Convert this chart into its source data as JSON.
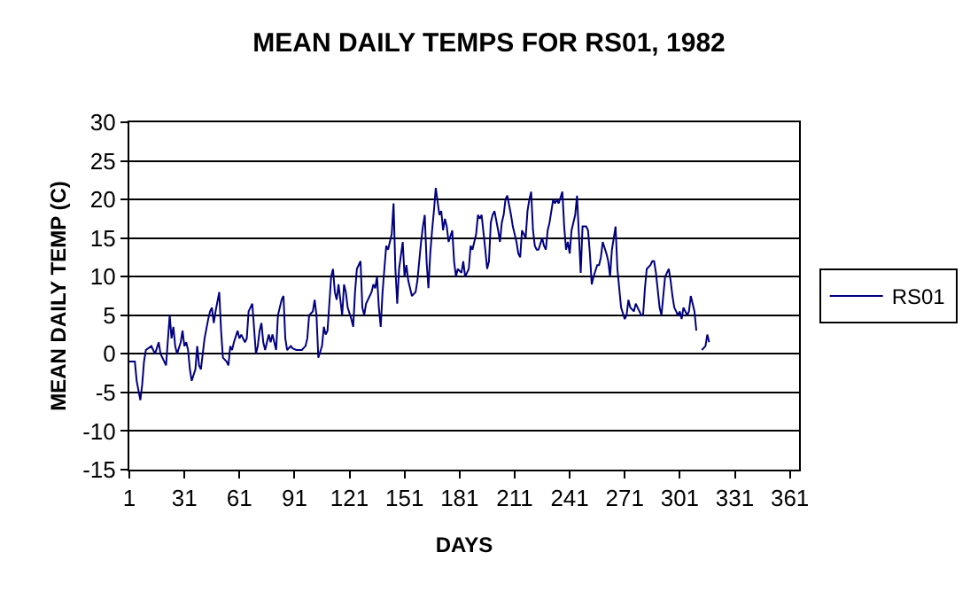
{
  "chart_data": {
    "type": "line",
    "title": "MEAN DAILY TEMPS FOR RS01, 1982",
    "xlabel": "DAYS",
    "ylabel": "MEAN DAILY TEMP (C)",
    "x": [
      1,
      4,
      5,
      7,
      8,
      9,
      10,
      13,
      15,
      17,
      18,
      19,
      21,
      23,
      24,
      25,
      26,
      27,
      29,
      30,
      31,
      32,
      33,
      34,
      35,
      37,
      38,
      39,
      40,
      41,
      42,
      44,
      45,
      46,
      47,
      48,
      50,
      51,
      52,
      54,
      55,
      56,
      57,
      58,
      60,
      61,
      62,
      64,
      65,
      66,
      67,
      68,
      70,
      71,
      72,
      73,
      74,
      75,
      77,
      78,
      79,
      80,
      81,
      82,
      84,
      85,
      86,
      87,
      89,
      90,
      92,
      95,
      97,
      98,
      99,
      101,
      102,
      103,
      104,
      106,
      107,
      108,
      109,
      110,
      111,
      112,
      113,
      114,
      115,
      117,
      118,
      119,
      120,
      122,
      123,
      124,
      125,
      127,
      128,
      129,
      130,
      132,
      133,
      134,
      135,
      136,
      137,
      138,
      139,
      140,
      141,
      142,
      144,
      145,
      146,
      147,
      148,
      150,
      151,
      152,
      153,
      154,
      155,
      157,
      158,
      160,
      161,
      162,
      163,
      164,
      165,
      166,
      167,
      168,
      170,
      171,
      172,
      173,
      174,
      175,
      177,
      178,
      179,
      180,
      182,
      183,
      184,
      185,
      186,
      187,
      188,
      190,
      191,
      192,
      193,
      195,
      196,
      197,
      198,
      199,
      200,
      202,
      203,
      204,
      205,
      206,
      207,
      209,
      210,
      211,
      212,
      213,
      214,
      215,
      217,
      218,
      219,
      220,
      221,
      222,
      223,
      224,
      226,
      227,
      228,
      229,
      230,
      232,
      233,
      234,
      235,
      237,
      238,
      239,
      240,
      241,
      242,
      244,
      245,
      247,
      248,
      250,
      251,
      252,
      253,
      254,
      256,
      257,
      258,
      259,
      261,
      262,
      263,
      264,
      266,
      267,
      268,
      269,
      271,
      272,
      273,
      274,
      276,
      277,
      278,
      280,
      281,
      282,
      283,
      285,
      286,
      287,
      288,
      290,
      291,
      292,
      293,
      295,
      296,
      297,
      298,
      300,
      301,
      302,
      303,
      305,
      306,
      307,
      309,
      310,
      311,
      313,
      315,
      316,
      317
    ],
    "series": [
      {
        "name": "RS01",
        "color": "#000080",
        "values": [
          -1,
          -1,
          -3.5,
          -6,
          -4,
          -1,
          0.5,
          1,
          0,
          1.5,
          0,
          -0.5,
          -1.5,
          5,
          2,
          3.5,
          1,
          0,
          1.5,
          3,
          1,
          1.5,
          0.5,
          -2,
          -3.5,
          -2,
          1,
          -1.5,
          -2,
          0,
          2,
          4.5,
          5.5,
          6,
          4,
          5.5,
          8,
          3,
          -0.5,
          -1,
          -1.5,
          1,
          0.5,
          1.5,
          3,
          2,
          2.5,
          1.5,
          2,
          5.5,
          6,
          6.5,
          0,
          1,
          3,
          4,
          1.5,
          0.5,
          2.5,
          1.5,
          2.5,
          1.5,
          0.5,
          5,
          7,
          7.5,
          2,
          0.5,
          1,
          0.7,
          0.5,
          0.5,
          1,
          2,
          5,
          5.5,
          7,
          5,
          -0.5,
          1,
          3.5,
          2.5,
          3,
          6.5,
          10,
          11,
          8,
          7,
          9,
          5,
          9,
          8,
          6,
          4.5,
          3.5,
          8,
          11,
          12,
          6,
          5,
          6.5,
          7.5,
          8,
          9,
          8.5,
          10,
          6,
          3.5,
          8,
          11,
          14,
          13.5,
          15.5,
          19.5,
          11,
          6.5,
          11,
          14.5,
          10,
          11.5,
          9.5,
          8.5,
          7.5,
          8,
          9.5,
          14.5,
          16.5,
          18,
          12,
          8.5,
          13,
          16,
          18.5,
          21.5,
          18,
          18.5,
          16,
          17.5,
          16.5,
          14.5,
          16,
          12,
          10,
          11,
          10.5,
          12,
          10,
          10.5,
          11,
          14,
          13.5,
          15.5,
          18,
          17.5,
          18,
          13.5,
          11,
          12,
          17,
          18,
          18.5,
          16,
          14.5,
          17,
          18,
          20,
          20.5,
          18,
          16.5,
          15.5,
          14.5,
          13,
          12.5,
          16,
          15,
          18.5,
          20,
          21,
          16,
          14,
          13.5,
          13.5,
          15,
          14,
          13.5,
          16,
          17,
          20,
          19.5,
          20,
          19.5,
          21,
          16.5,
          13.5,
          14.5,
          13,
          16,
          18,
          20.5,
          10.5,
          16.5,
          16.5,
          16,
          13,
          9,
          10,
          11.5,
          11.5,
          12.5,
          14.5,
          13,
          12,
          10,
          13.5,
          16.5,
          11,
          8.5,
          6,
          4.5,
          5,
          7,
          6,
          5.5,
          6.5,
          6,
          5,
          5,
          8.5,
          11,
          11.5,
          12,
          12,
          10.5,
          6,
          5,
          7.5,
          10,
          11,
          9.5,
          7.5,
          6,
          5,
          5.5,
          4.5,
          6,
          5,
          5.5,
          7.5,
          5.5,
          3,
          null,
          0.5,
          1,
          2.5,
          1.5
        ]
      }
    ],
    "xlim": [
      1,
      366
    ],
    "xticks": [
      1,
      31,
      61,
      91,
      121,
      151,
      181,
      211,
      241,
      271,
      301,
      331,
      361
    ],
    "ylim": [
      -15,
      30
    ],
    "yticks": [
      -15,
      -10,
      -5,
      0,
      5,
      10,
      15,
      20,
      25,
      30
    ],
    "grid": "y",
    "legend": "right",
    "marker": "none",
    "line_style": "solid"
  }
}
